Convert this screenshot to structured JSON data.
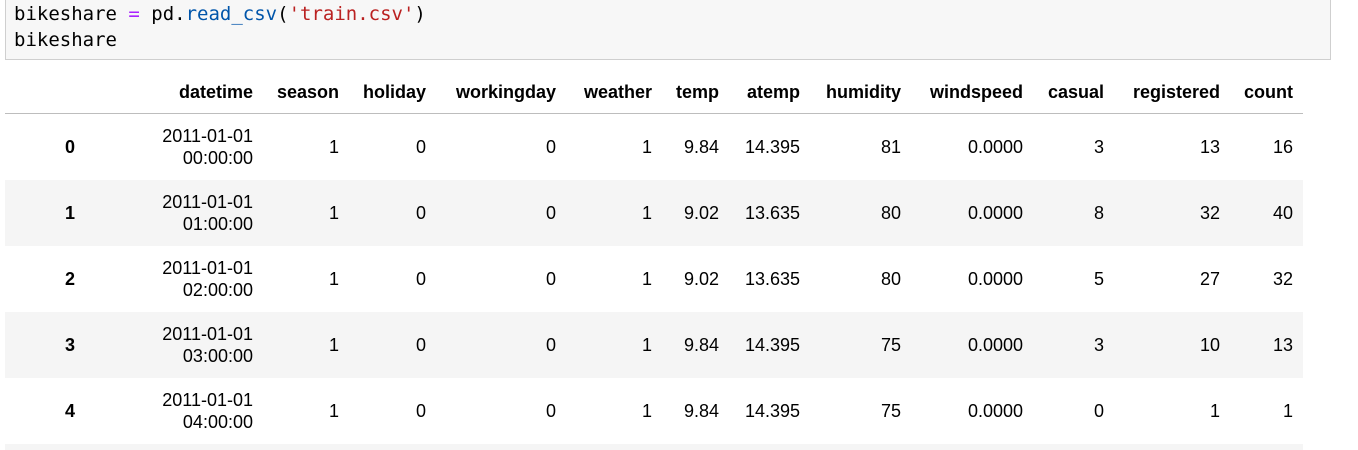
{
  "code": {
    "lines": [
      [
        "bikeshare ",
        "=",
        " pd.",
        "read_csv",
        "(",
        "'train.csv'",
        ")"
      ],
      [
        "bikeshare"
      ]
    ]
  },
  "table": {
    "columns": [
      "datetime",
      "season",
      "holiday",
      "workingday",
      "weather",
      "temp",
      "atemp",
      "humidity",
      "windspeed",
      "casual",
      "registered",
      "count"
    ],
    "index": [
      "0",
      "1",
      "2",
      "3",
      "4"
    ],
    "rows": [
      [
        "2011-01-01 00:00:00",
        "1",
        "0",
        "0",
        "1",
        "9.84",
        "14.395",
        "81",
        "0.0000",
        "3",
        "13",
        "16"
      ],
      [
        "2011-01-01 01:00:00",
        "1",
        "0",
        "0",
        "1",
        "9.02",
        "13.635",
        "80",
        "0.0000",
        "8",
        "32",
        "40"
      ],
      [
        "2011-01-01 02:00:00",
        "1",
        "0",
        "0",
        "1",
        "9.02",
        "13.635",
        "80",
        "0.0000",
        "5",
        "27",
        "32"
      ],
      [
        "2011-01-01 03:00:00",
        "1",
        "0",
        "0",
        "1",
        "9.84",
        "14.395",
        "75",
        "0.0000",
        "3",
        "10",
        "13"
      ],
      [
        "2011-01-01 04:00:00",
        "1",
        "0",
        "0",
        "1",
        "9.84",
        "14.395",
        "75",
        "0.0000",
        "0",
        "1",
        "1"
      ]
    ]
  }
}
